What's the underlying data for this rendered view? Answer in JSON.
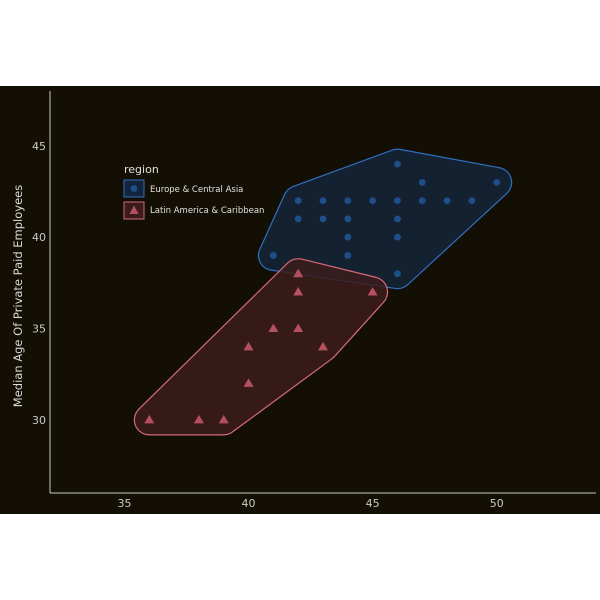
{
  "chart_data": {
    "type": "scatter",
    "xlabel": "",
    "ylabel": "Median Age Of Private Paid Employees",
    "xlim": [
      32,
      54
    ],
    "ylim": [
      26,
      48
    ],
    "x_ticks": [
      35,
      40,
      45,
      50
    ],
    "y_ticks": [
      30,
      35,
      40,
      45
    ],
    "grid": false,
    "legend": {
      "title": "region",
      "placement": "top-left"
    },
    "series": [
      {
        "name": "Europe & Central Asia",
        "marker": "circle",
        "color": "#1e4f8a",
        "hull_stroke": "#2f6fbf",
        "hull_fill": "#14243a",
        "points": [
          [
            41,
            39
          ],
          [
            42,
            42
          ],
          [
            42,
            41
          ],
          [
            43,
            42
          ],
          [
            43,
            41
          ],
          [
            44,
            42
          ],
          [
            44,
            41
          ],
          [
            44,
            40
          ],
          [
            44,
            39
          ],
          [
            45,
            42
          ],
          [
            46,
            44
          ],
          [
            46,
            42
          ],
          [
            46,
            41
          ],
          [
            46,
            40
          ],
          [
            46,
            38
          ],
          [
            47,
            43
          ],
          [
            47,
            42
          ],
          [
            48,
            42
          ],
          [
            49,
            42
          ],
          [
            50,
            43
          ]
        ]
      },
      {
        "name": "Latin America & Caribbean",
        "marker": "triangle",
        "color": "#b5505e",
        "hull_stroke": "#d46a79",
        "hull_fill": "#3b1c1c",
        "points": [
          [
            36,
            30
          ],
          [
            38,
            30
          ],
          [
            39,
            30
          ],
          [
            40,
            32
          ],
          [
            40,
            34
          ],
          [
            41,
            35
          ],
          [
            42,
            38
          ],
          [
            42,
            37
          ],
          [
            42,
            35
          ],
          [
            43,
            34
          ],
          [
            45,
            37
          ]
        ]
      }
    ]
  }
}
